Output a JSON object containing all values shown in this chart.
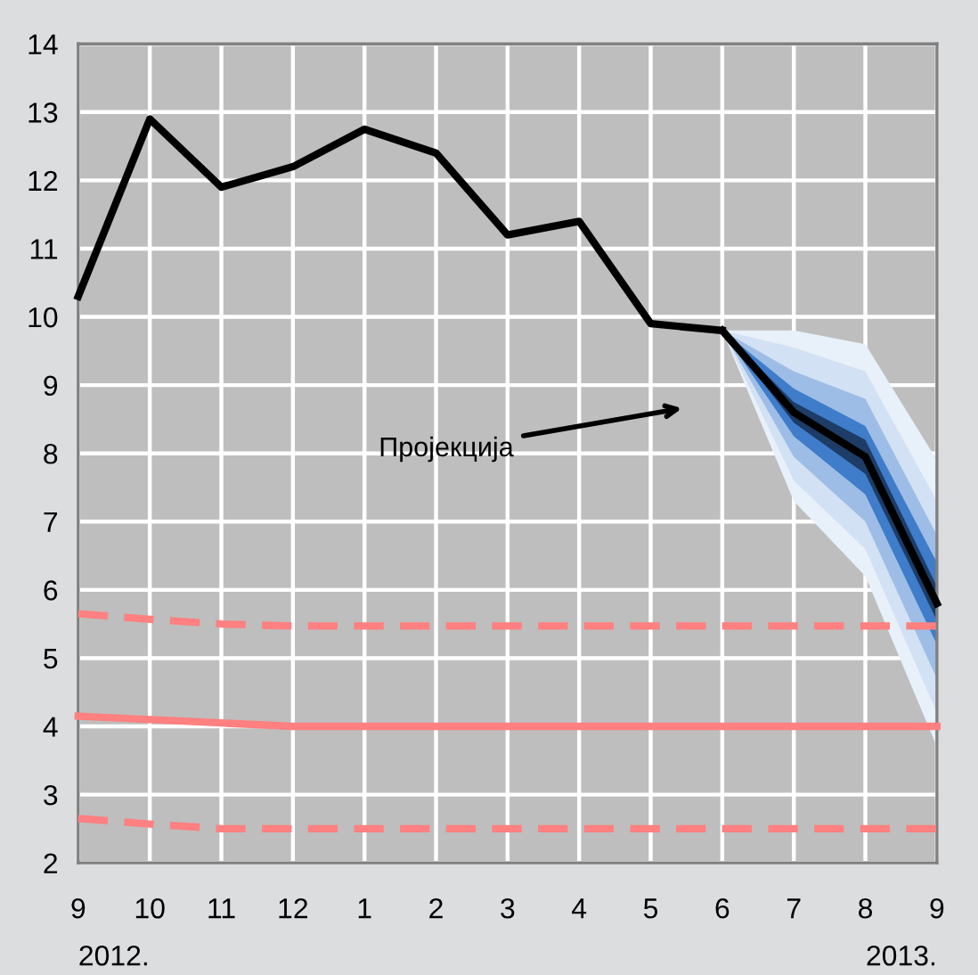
{
  "chart_data": {
    "type": "line",
    "categories": [
      "9",
      "10",
      "11",
      "12",
      "1",
      "2",
      "3",
      "4",
      "5",
      "6",
      "7",
      "8",
      "9"
    ],
    "ylim": [
      2,
      14
    ],
    "yticks": [
      2,
      3,
      4,
      5,
      6,
      7,
      8,
      9,
      10,
      11,
      12,
      13,
      14
    ],
    "grid": true,
    "legend": false,
    "marker": "none",
    "series": [
      {
        "color": "#e8f0f9",
        "values": [
          null,
          null,
          null,
          null,
          null,
          null,
          null,
          null,
          null,
          null,
          null,
          null,
          null
        ],
        "lower": [
          null,
          null,
          null,
          null,
          null,
          null,
          null,
          null,
          null,
          9.8,
          7.3,
          6.2,
          3.7
        ],
        "upper": [
          null,
          null,
          null,
          null,
          null,
          null,
          null,
          null,
          null,
          9.8,
          9.8,
          9.6,
          7.9
        ]
      },
      {
        "color": "#d2e1f3",
        "values": [
          null,
          null,
          null,
          null,
          null,
          null,
          null,
          null,
          null,
          null,
          null,
          null,
          null
        ],
        "lower": [
          null,
          null,
          null,
          null,
          null,
          null,
          null,
          null,
          null,
          9.8,
          7.6,
          6.6,
          4.2
        ],
        "upper": [
          null,
          null,
          null,
          null,
          null,
          null,
          null,
          null,
          null,
          9.8,
          9.55,
          9.2,
          7.3
        ]
      },
      {
        "color": "#9dbde6",
        "values": [
          null,
          null,
          null,
          null,
          null,
          null,
          null,
          null,
          null,
          null,
          null,
          null,
          null
        ],
        "lower": [
          null,
          null,
          null,
          null,
          null,
          null,
          null,
          null,
          null,
          9.8,
          7.95,
          7.0,
          4.7
        ],
        "upper": [
          null,
          null,
          null,
          null,
          null,
          null,
          null,
          null,
          null,
          9.8,
          9.2,
          8.8,
          6.8
        ]
      },
      {
        "color": "#3f7cc9",
        "values": [
          null,
          null,
          null,
          null,
          null,
          null,
          null,
          null,
          null,
          null,
          null,
          null,
          null
        ],
        "lower": [
          null,
          null,
          null,
          null,
          null,
          null,
          null,
          null,
          null,
          9.8,
          8.25,
          7.4,
          5.2
        ],
        "upper": [
          null,
          null,
          null,
          null,
          null,
          null,
          null,
          null,
          null,
          9.8,
          8.95,
          8.4,
          6.4
        ]
      },
      {
        "color": "#1d3c66",
        "values": [
          null,
          null,
          null,
          null,
          null,
          null,
          null,
          null,
          null,
          null,
          null,
          null,
          null
        ],
        "lower": [
          null,
          null,
          null,
          null,
          null,
          null,
          null,
          null,
          null,
          9.8,
          8.45,
          7.7,
          5.55
        ],
        "upper": [
          null,
          null,
          null,
          null,
          null,
          null,
          null,
          null,
          null,
          9.8,
          8.75,
          8.2,
          6.05
        ]
      },
      {
        "color": "#000000",
        "values": [
          null,
          null,
          null,
          null,
          null,
          null,
          null,
          null,
          null,
          9.8,
          8.6,
          7.95,
          5.8
        ]
      },
      {
        "color": "#000000",
        "values": [
          10.3,
          12.9,
          11.9,
          12.2,
          12.75,
          12.4,
          11.2,
          11.4,
          9.9,
          9.8,
          null,
          null,
          null
        ]
      },
      {
        "color": "#ff8080",
        "line_style": "dashed",
        "values": [
          5.65,
          5.57,
          5.5,
          5.47,
          5.47,
          5.47,
          5.47,
          5.47,
          5.47,
          5.47,
          5.47,
          5.47,
          5.47
        ]
      },
      {
        "color": "#ff8080",
        "line_style": "solid",
        "values": [
          4.15,
          4.1,
          4.05,
          4.0,
          4.0,
          4.0,
          4.0,
          4.0,
          4.0,
          4.0,
          4.0,
          4.0,
          4.0
        ]
      },
      {
        "color": "#ff8080",
        "line_style": "dashed",
        "values": [
          2.65,
          2.57,
          2.5,
          2.5,
          2.5,
          2.5,
          2.5,
          2.5,
          2.5,
          2.5,
          2.5,
          2.5,
          2.5
        ]
      }
    ],
    "annotations": [
      "Пројекција",
      "2012.",
      "2013."
    ]
  }
}
